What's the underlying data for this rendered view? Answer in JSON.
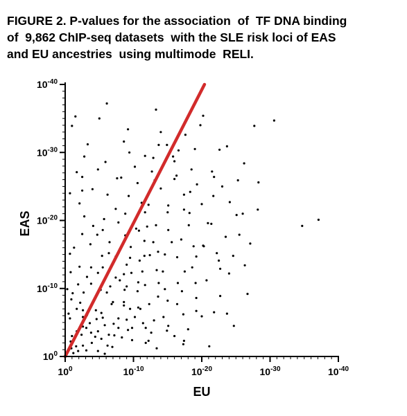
{
  "caption": "FIGURE 2. P-values for the association  of  TF DNA binding\nof  9,862 ChIP-seq datasets  with the SLE risk loci of EAS\nand EU ancestries  using multimode  RELI.",
  "chart_data": {
    "type": "scatter",
    "title": "",
    "xlabel": "EU",
    "ylabel": "EAS",
    "x_scale": "-log10(p)",
    "y_scale": "-log10(p)",
    "xlim": [
      0,
      40
    ],
    "ylim": [
      0,
      40
    ],
    "x_ticks": [
      {
        "value": 0,
        "base": "10",
        "exp": "0"
      },
      {
        "value": 10,
        "base": "10",
        "exp": "-10"
      },
      {
        "value": 20,
        "base": "10",
        "exp": "-20"
      },
      {
        "value": 30,
        "base": "10",
        "exp": "-30"
      },
      {
        "value": 40,
        "base": "10",
        "exp": "-40"
      }
    ],
    "y_ticks": [
      {
        "value": 0,
        "base": "10",
        "exp": "0"
      },
      {
        "value": 10,
        "base": "10",
        "exp": "-10"
      },
      {
        "value": 20,
        "base": "10",
        "exp": "-20"
      },
      {
        "value": 30,
        "base": "10",
        "exp": "-30"
      },
      {
        "value": 40,
        "base": "10",
        "exp": "-40"
      }
    ],
    "dataset_count": 9862,
    "point_color": "#000000",
    "series": [
      {
        "points": [
          [
            6.1,
            37.2
          ],
          [
            13.3,
            36.3
          ],
          [
            5.0,
            35.0
          ],
          [
            1.5,
            35.3
          ],
          [
            20.2,
            35.4
          ],
          [
            27.7,
            33.9
          ],
          [
            9.2,
            33.4
          ],
          [
            14.0,
            33.0
          ],
          [
            1.0,
            33.9
          ],
          [
            17.6,
            32.6
          ],
          [
            22.6,
            30.4
          ],
          [
            23.7,
            30.9
          ],
          [
            9.4,
            30.0
          ],
          [
            5.9,
            28.6
          ],
          [
            16.3,
            26.6
          ],
          [
            19.3,
            25.3
          ],
          [
            25.3,
            25.9
          ],
          [
            28.3,
            25.6
          ],
          [
            2.5,
            24.4
          ],
          [
            2.5,
            26.4
          ],
          [
            0.7,
            24.0
          ],
          [
            7.6,
            26.2
          ],
          [
            10.6,
            25.5
          ],
          [
            21.8,
            26.4
          ],
          [
            7.4,
            21.7
          ],
          [
            17.4,
            21.6
          ],
          [
            21.4,
            19.5
          ],
          [
            25.1,
            20.8
          ],
          [
            2.5,
            18.0
          ],
          [
            5.5,
            18.6
          ],
          [
            12.0,
            19.1
          ],
          [
            20.2,
            16.3
          ],
          [
            22.2,
            15.2
          ],
          [
            14.6,
            15.0
          ],
          [
            5.4,
            14.8
          ],
          [
            9.0,
            10.3
          ],
          [
            10.6,
            9.6
          ],
          [
            14.6,
            9.9
          ],
          [
            19.2,
            8.6
          ],
          [
            19.2,
            6.7
          ],
          [
            23.7,
            6.3
          ],
          [
            24.7,
            4.5
          ],
          [
            18.0,
            4.0
          ],
          [
            16.0,
            3.0
          ],
          [
            14.9,
            3.8
          ],
          [
            12.2,
            2.3
          ],
          [
            11.4,
            4.9
          ],
          [
            9.8,
            4.2
          ],
          [
            7.8,
            4.2
          ],
          [
            5.8,
            4.6
          ],
          [
            2.6,
            1.6
          ],
          [
            2.6,
            4.4
          ],
          [
            4.4,
            2.9
          ],
          [
            6.2,
            1.6
          ],
          [
            11.8,
            2.0
          ],
          [
            13.0,
            5.3
          ],
          [
            15.0,
            8.2
          ],
          [
            8.6,
            7.5
          ],
          [
            4.5,
            6.8
          ],
          [
            1.7,
            7.0
          ],
          [
            3.1,
            0.9
          ],
          [
            2.4,
            3.2
          ],
          [
            3.6,
            4.9
          ],
          [
            1.0,
            3.0
          ],
          [
            0.7,
            5.6
          ],
          [
            0.9,
            1.2
          ],
          [
            3.2,
            6.1
          ],
          [
            4.2,
            8.3
          ],
          [
            8.0,
            11.2
          ],
          [
            4.8,
            12.3
          ],
          [
            1.1,
            9.3
          ],
          [
            7.8,
            15.2
          ],
          [
            10.9,
            14.1
          ],
          [
            11.7,
            10.5
          ],
          [
            12.2,
            22.3
          ],
          [
            15.1,
            18.6
          ],
          [
            12.9,
            29.2
          ],
          [
            14.9,
            31.1
          ],
          [
            16.0,
            28.7
          ],
          [
            21.7,
            23.6
          ],
          [
            24.6,
            14.8
          ],
          [
            26.3,
            13.4
          ],
          [
            9.5,
            7.0
          ],
          [
            13.4,
            1.2
          ],
          [
            12.3,
            7.7
          ],
          [
            17.4,
            2.3
          ],
          [
            20.7,
            11.2
          ],
          [
            17.5,
            12.5
          ],
          [
            13.7,
            10.8
          ],
          [
            16.5,
            10.8
          ],
          [
            16.4,
            7.7
          ],
          [
            6.8,
            7.7
          ],
          [
            8.7,
            9.8
          ],
          [
            5.5,
            13.1
          ],
          [
            3.7,
            16.5
          ],
          [
            5.5,
            5.7
          ],
          [
            1.7,
            3.7
          ],
          [
            0.9,
            8.4
          ],
          [
            1.3,
            16.0
          ],
          [
            10.4,
            18.8
          ],
          [
            11.7,
            29.5
          ],
          [
            13.7,
            31.1
          ],
          [
            19.8,
            34.0
          ],
          [
            8.8,
            21.0
          ],
          [
            6.4,
            15.2
          ],
          [
            11.8,
            4.2
          ],
          [
            3.8,
            3.5
          ],
          [
            1.9,
            0.8
          ],
          [
            6.9,
            1.4
          ],
          [
            20.0,
            5.9
          ],
          [
            10.7,
            10.9
          ],
          [
            6.6,
            10.3
          ],
          [
            18.8,
            16.2
          ],
          [
            9.6,
            16.1
          ],
          [
            14.0,
            24.7
          ],
          [
            15.0,
            21.2
          ],
          [
            9.5,
            14.5
          ],
          [
            7.8,
            19.7
          ],
          [
            11.6,
            14.8
          ],
          [
            5.8,
            0.4
          ],
          [
            9.2,
            3.9
          ],
          [
            7.1,
            4.8
          ],
          [
            3.8,
            10.7
          ],
          [
            2.1,
            13.2
          ],
          [
            2.8,
            20.6
          ],
          [
            4.0,
            24.6
          ],
          [
            5.7,
            20.2
          ],
          [
            1.7,
            27.1
          ],
          [
            2.8,
            29.4
          ],
          [
            9.7,
            12.3
          ],
          [
            11.6,
            17.0
          ],
          [
            4.6,
            5.5
          ],
          [
            13.6,
            15.4
          ],
          [
            14.4,
            5.8
          ],
          [
            17.3,
            6.2
          ],
          [
            19.1,
            10.8
          ],
          [
            14.3,
            12.5
          ],
          [
            9.0,
            13.5
          ],
          [
            9.0,
            5.4
          ],
          [
            4.7,
            9.2
          ],
          [
            11.0,
            7.0
          ],
          [
            13.6,
            8.8
          ],
          [
            12.4,
            14.9
          ],
          [
            0.3,
            9.9
          ],
          [
            2.7,
            9.4
          ],
          [
            0.8,
            12.4
          ],
          [
            3.2,
            11.7
          ],
          [
            6.1,
            9.4
          ],
          [
            7.4,
            11.6
          ],
          [
            16.4,
            14.6
          ],
          [
            18.6,
            13.1
          ],
          [
            20.3,
            16.2
          ],
          [
            17.0,
            17.2
          ],
          [
            18.2,
            21.1
          ],
          [
            15.1,
            22.2
          ],
          [
            13.3,
            19.3
          ],
          [
            8.8,
            17.8
          ],
          [
            7.4,
            14.7
          ],
          [
            4.1,
            19.2
          ],
          [
            11.2,
            22.6
          ],
          [
            13.1,
            25.9
          ],
          [
            17.4,
            23.8
          ],
          [
            18.5,
            27.5
          ],
          [
            16.6,
            30.3
          ],
          [
            21.5,
            27.2
          ],
          [
            8.2,
            26.3
          ],
          [
            3.3,
            31.2
          ],
          [
            0.7,
            15.1
          ],
          [
            17.1,
            9.6
          ],
          [
            22.7,
            12.9
          ],
          [
            22.7,
            8.9
          ],
          [
            21.8,
            6.5
          ],
          [
            26.7,
            9.2
          ],
          [
            17.3,
            1.8
          ],
          [
            21.1,
            1.5
          ],
          [
            3.8,
            13.1
          ],
          [
            6.2,
            12.1
          ],
          [
            8.6,
            12.1
          ],
          [
            2.6,
            5.8
          ],
          [
            4.8,
            3.7
          ],
          [
            7.2,
            3.1
          ],
          [
            5.3,
            6.4
          ],
          [
            9.8,
            2.4
          ],
          [
            10.7,
            7.2
          ],
          [
            11.3,
            12.5
          ],
          [
            13.4,
            12.7
          ],
          [
            8.6,
            8.0
          ],
          [
            7.0,
            8.0
          ],
          [
            10.8,
            18.5
          ],
          [
            15.6,
            16.8
          ],
          [
            12.9,
            16.8
          ],
          [
            9.3,
            23.6
          ],
          [
            11.7,
            21.2
          ],
          [
            12.7,
            27.2
          ],
          [
            16.0,
            26.1
          ],
          [
            19.0,
            30.5
          ],
          [
            15.8,
            29.4
          ],
          [
            18.3,
            24.2
          ],
          [
            20.9,
            19.6
          ],
          [
            23.5,
            17.6
          ],
          [
            22.5,
            14.1
          ],
          [
            24.0,
            12.2
          ],
          [
            19.2,
            14.7
          ],
          [
            26.0,
            21.0
          ],
          [
            28.2,
            21.6
          ],
          [
            23.0,
            25.0
          ],
          [
            34.7,
            19.2
          ],
          [
            37.1,
            20.1
          ],
          [
            30.6,
            34.7
          ],
          [
            26.2,
            28.4
          ],
          [
            2.6,
            6.8
          ],
          [
            5.3,
            2.6
          ],
          [
            1.2,
            0.5
          ],
          [
            0.8,
            2.2
          ],
          [
            1.6,
            1.5
          ],
          [
            3.9,
            2.0
          ],
          [
            6.4,
            3.2
          ],
          [
            3.1,
            4.2
          ],
          [
            4.8,
            0.8
          ],
          [
            2.2,
            7.9
          ],
          [
            8.3,
            2.8
          ],
          [
            7.8,
            5.6
          ],
          [
            0.5,
            6.3
          ],
          [
            5.2,
            9.8
          ],
          [
            10.2,
            5.8
          ],
          [
            1.9,
            10.6
          ],
          [
            12.6,
            3.5
          ],
          [
            15.1,
            4.5
          ],
          [
            6.5,
            16.8
          ],
          [
            4.7,
            17.9
          ],
          [
            2.1,
            22.5
          ],
          [
            4.8,
            27.5
          ],
          [
            6.2,
            23.8
          ],
          [
            10.2,
            27.9
          ],
          [
            8.6,
            31.6
          ],
          [
            18.1,
            19.3
          ],
          [
            20.0,
            22.4
          ],
          [
            24.1,
            22.7
          ],
          [
            27.1,
            16.6
          ],
          [
            25.5,
            17.9
          ]
        ]
      }
    ],
    "reference_line": {
      "from": [
        0,
        0
      ],
      "to": [
        20.4,
        40
      ],
      "color": "#d22b2b"
    }
  }
}
